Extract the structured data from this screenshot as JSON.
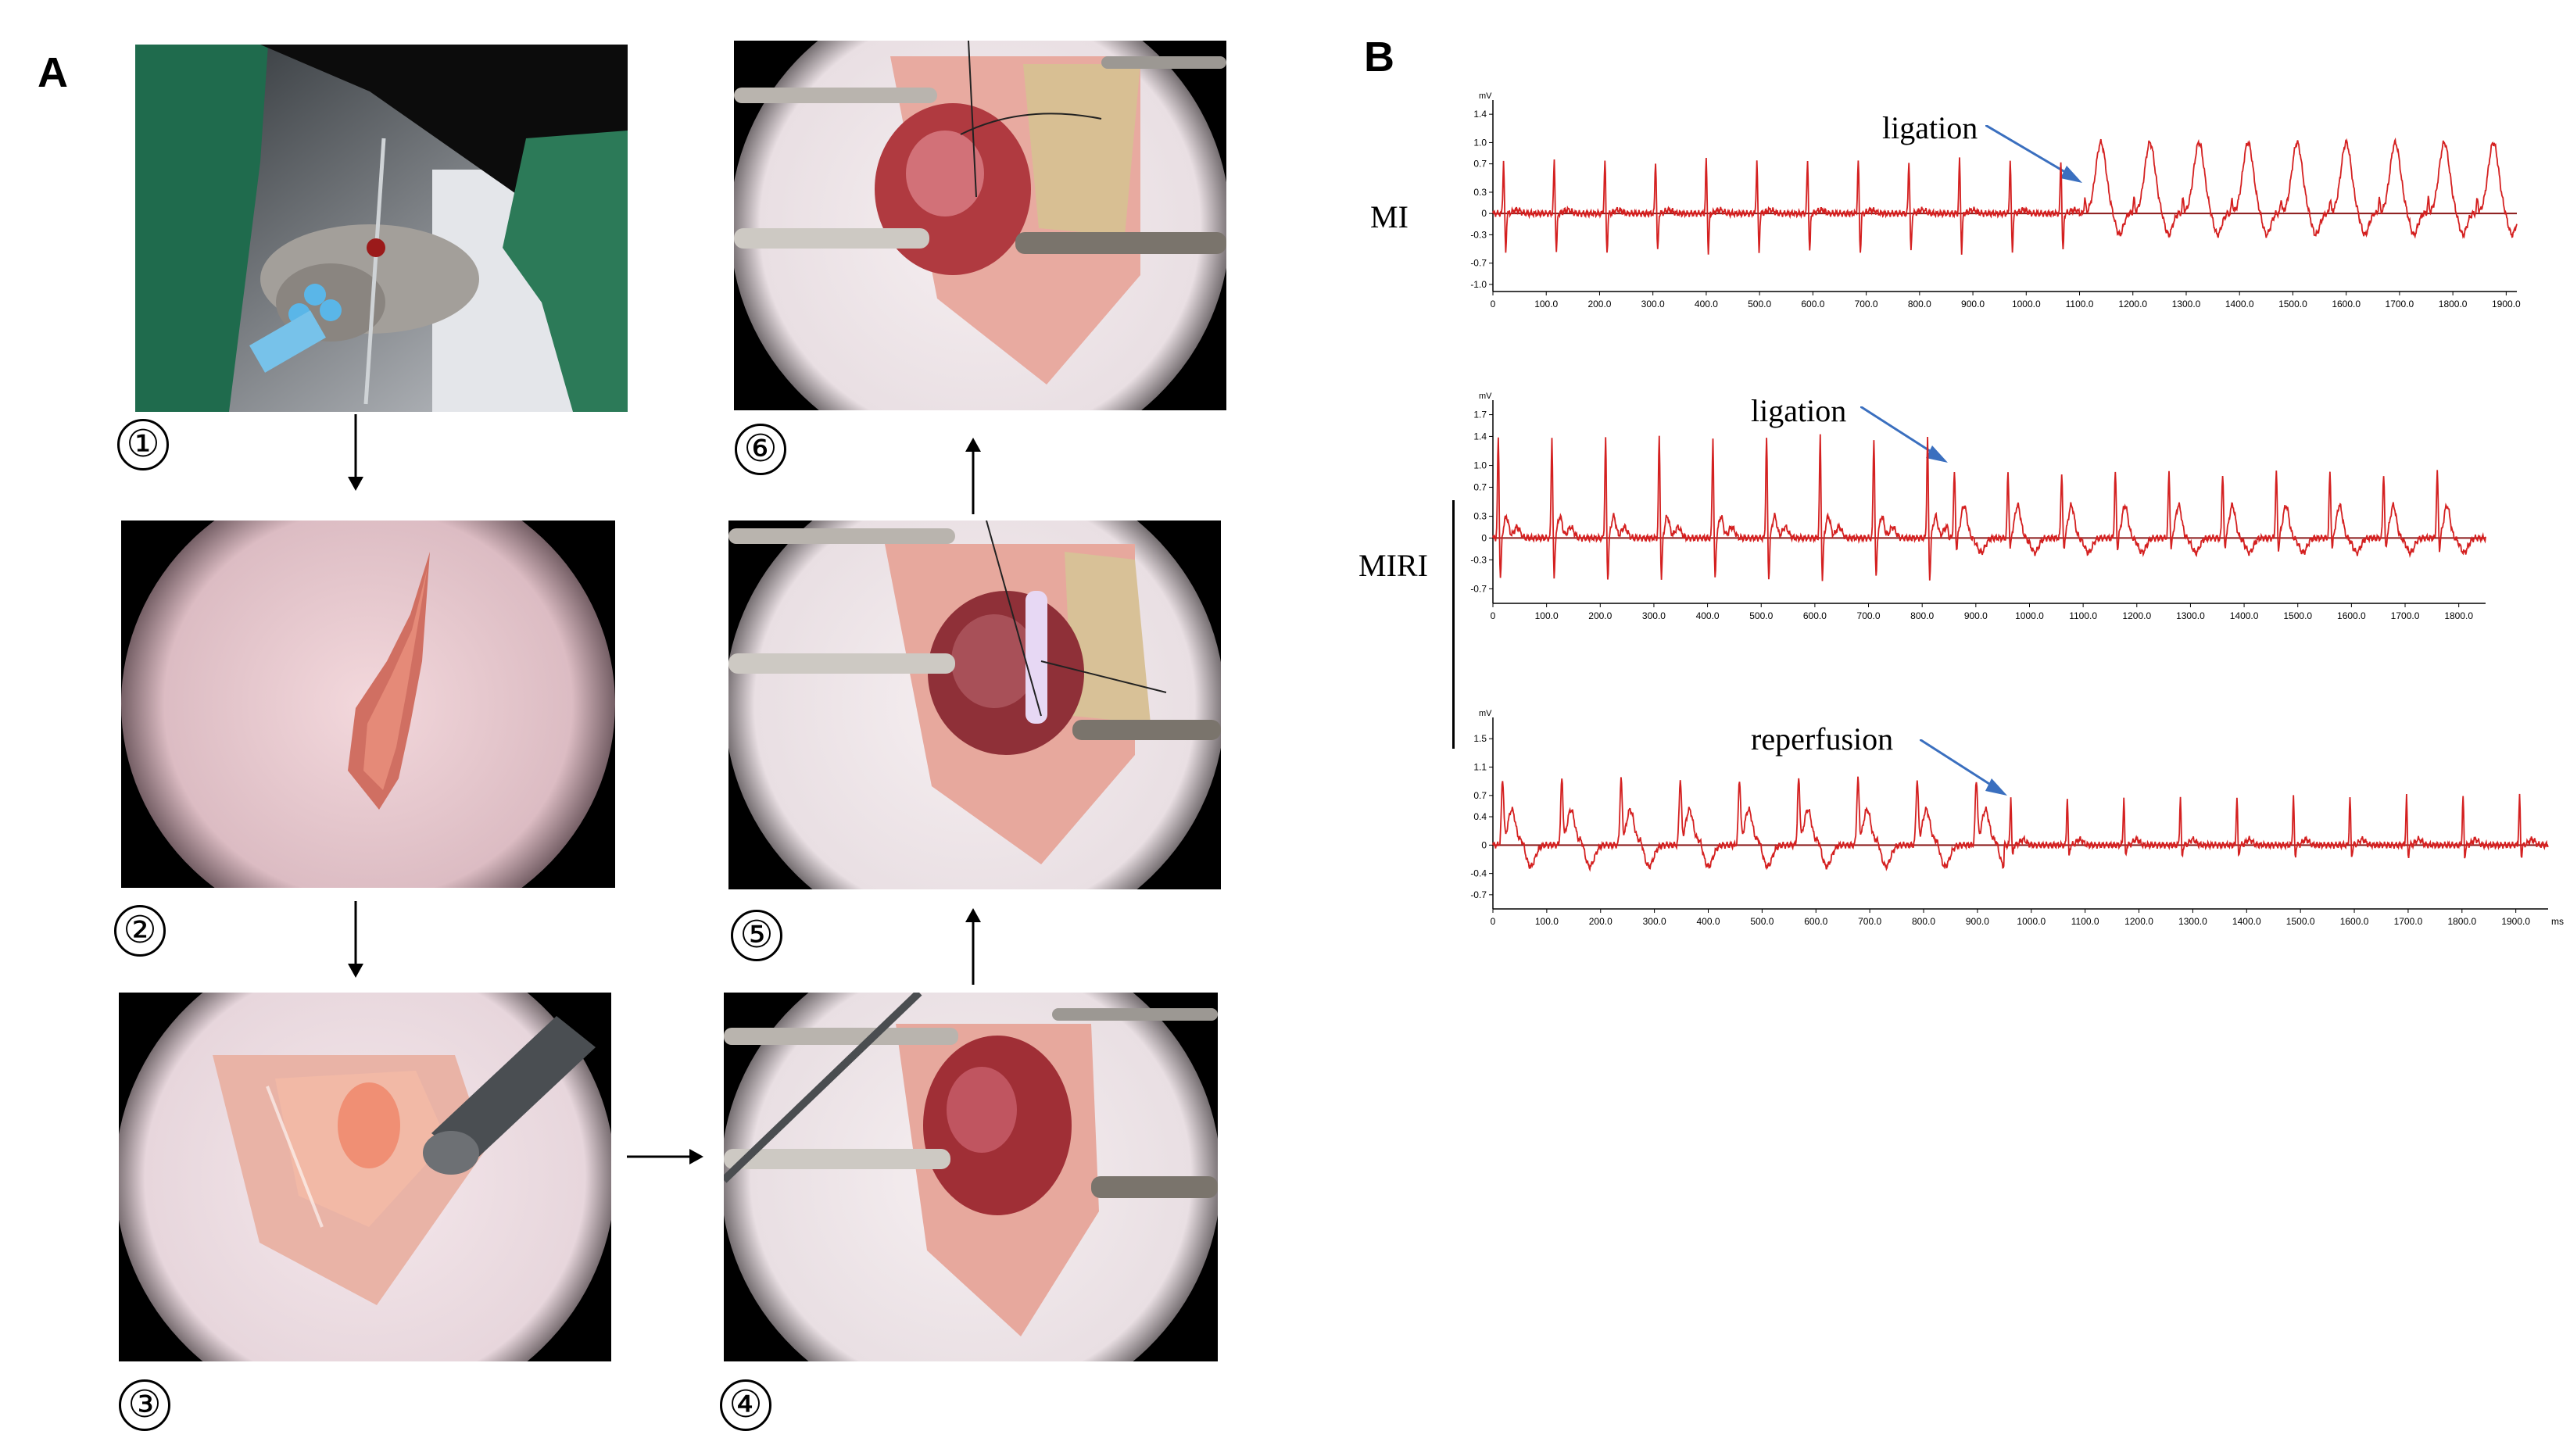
{
  "panels": {
    "A": {
      "letter": "A",
      "steps": [
        {
          "num": "①",
          "desc": "anesthetized mouse"
        },
        {
          "num": "②",
          "desc": "skin incision"
        },
        {
          "num": "③",
          "desc": "thorax opened"
        },
        {
          "num": "④",
          "desc": "heart exposed"
        },
        {
          "num": "⑤",
          "desc": "LAD ligation"
        },
        {
          "num": "⑥",
          "desc": "reperfusion"
        }
      ]
    },
    "B": {
      "letter": "B",
      "group_labels": {
        "mi": "MI",
        "miri": "MIRI"
      },
      "annotations": {
        "mi": "ligation",
        "miri_top": "ligation",
        "miri_bottom": "reperfusion"
      },
      "units": {
        "mv": "mV",
        "ms": "ms"
      }
    }
  },
  "colors": {
    "trace": "#d42020",
    "baseline": "#8b1a1a",
    "annotation_arrow": "#3a6fbf"
  },
  "chart_data": [
    {
      "type": "line",
      "title": "MI",
      "x_ticks": [
        "0",
        "100.0",
        "200.0",
        "300.0",
        "400.0",
        "500.0",
        "600.0",
        "700.0",
        "800.0",
        "900.0",
        "1000.0",
        "1100.0",
        "1200.0",
        "1300.0",
        "1400.0",
        "1500.0",
        "1600.0",
        "1700.0",
        "1800.0",
        "1900.0"
      ],
      "y_ticks": [
        "1.4",
        "1.0",
        "0.7",
        "0.3",
        "0",
        "-0.3",
        "-0.7",
        "-1.0"
      ],
      "xlim": [
        0,
        1920
      ],
      "ylim": [
        -1.1,
        1.6
      ],
      "annotation": {
        "text": "ligation",
        "x": 1100
      }
    },
    {
      "type": "line",
      "title": "MIRI (ligation)",
      "x_ticks": [
        "0",
        "100.0",
        "200.0",
        "300.0",
        "400.0",
        "500.0",
        "600.0",
        "700.0",
        "800.0",
        "900.0",
        "1000.0",
        "1100.0",
        "1200.0",
        "1300.0",
        "1400.0",
        "1500.0",
        "1600.0",
        "1700.0",
        "1800.0"
      ],
      "y_ticks": [
        "1.7",
        "1.4",
        "1.0",
        "0.7",
        "0.3",
        "0",
        "-0.3",
        "-0.7"
      ],
      "xlim": [
        0,
        1850
      ],
      "ylim": [
        -0.9,
        1.9
      ],
      "annotation": {
        "text": "ligation",
        "x": 850
      }
    },
    {
      "type": "line",
      "title": "MIRI (reperfusion)",
      "x_ticks": [
        "0",
        "100.0",
        "200.0",
        "300.0",
        "400.0",
        "500.0",
        "600.0",
        "700.0",
        "800.0",
        "900.0",
        "1000.0",
        "1100.0",
        "1200.0",
        "1300.0",
        "1400.0",
        "1500.0",
        "1600.0",
        "1700.0",
        "1800.0",
        "1900.0"
      ],
      "y_ticks": [
        "1.5",
        "1.1",
        "0.7",
        "0.4",
        "0",
        "-0.4",
        "-0.7"
      ],
      "xlim": [
        0,
        1960
      ],
      "ylim": [
        -0.9,
        1.8
      ],
      "annotation": {
        "text": "reperfusion",
        "x": 950
      }
    }
  ]
}
